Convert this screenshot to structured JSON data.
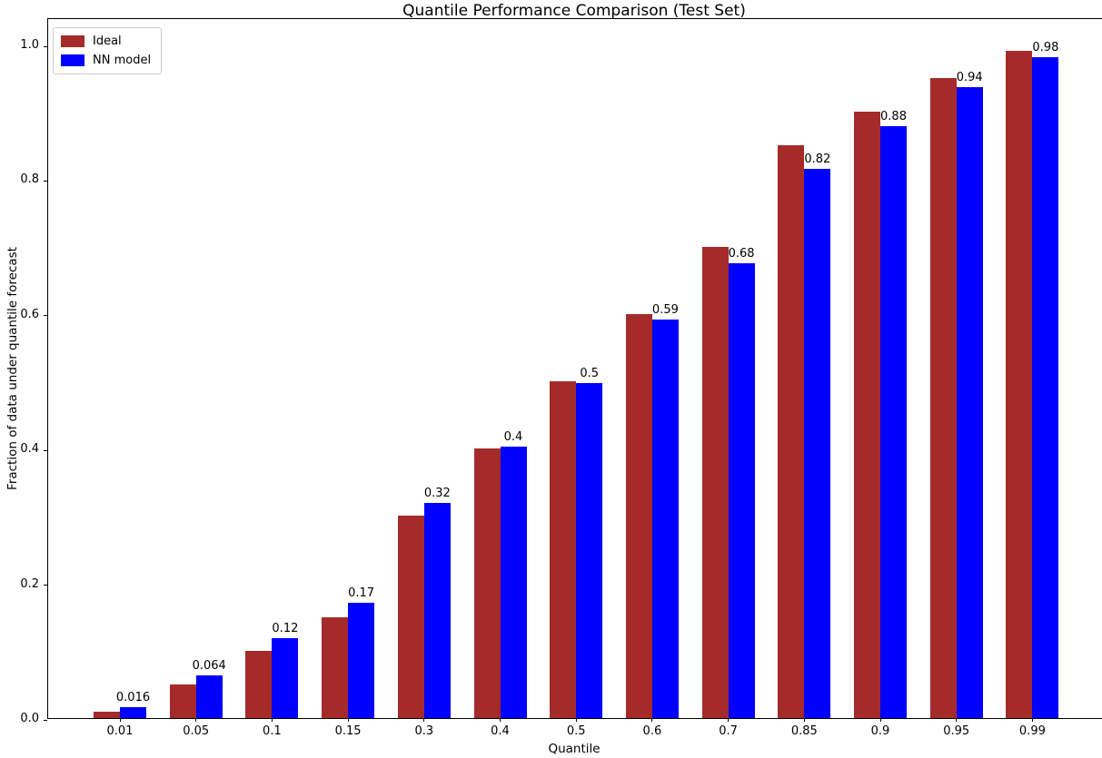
{
  "chart_data": {
    "type": "bar",
    "title": "Quantile Performance Comparison (Test Set)",
    "xlabel": "Quantile",
    "ylabel": "Fraction of data under quantile forecast",
    "categories": [
      "0.01",
      "0.05",
      "0.1",
      "0.15",
      "0.3",
      "0.4",
      "0.5",
      "0.6",
      "0.7",
      "0.85",
      "0.9",
      "0.95",
      "0.99"
    ],
    "series": [
      {
        "name": "Ideal",
        "color": "#A52A2A",
        "values": [
          0.01,
          0.05,
          0.1,
          0.15,
          0.3,
          0.4,
          0.5,
          0.6,
          0.7,
          0.85,
          0.9,
          0.95,
          0.99
        ]
      },
      {
        "name": "NN model",
        "color": "#0000FF",
        "values": [
          0.016,
          0.064,
          0.118,
          0.171,
          0.319,
          0.403,
          0.497,
          0.592,
          0.675,
          0.815,
          0.879,
          0.937,
          0.981
        ],
        "value_labels": [
          "0.016",
          "0.064",
          "0.12",
          "0.17",
          "0.32",
          "0.4",
          "0.5",
          "0.59",
          "0.68",
          "0.82",
          "0.88",
          "0.94",
          "0.98"
        ]
      }
    ],
    "ylim": [
      0,
      1.04
    ],
    "yticks": {
      "values": [
        0,
        0.2,
        0.4,
        0.6,
        0.8,
        1.0
      ],
      "labels": [
        "0.0",
        "0.2",
        "0.4",
        "0.6",
        "0.8",
        "1.0"
      ]
    },
    "legend": {
      "position": "upper left",
      "entries": [
        "Ideal",
        "NN model"
      ]
    },
    "grid": false
  }
}
